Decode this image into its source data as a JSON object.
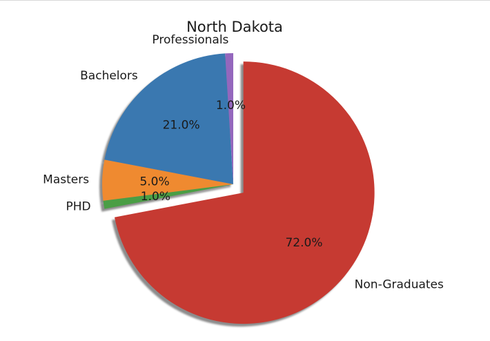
{
  "chart_data": {
    "type": "pie",
    "title": "North Dakota",
    "start_angle_deg": 90,
    "direction": "counterclockwise",
    "shadow": true,
    "legend": "none",
    "slices": [
      {
        "label": "Professionals",
        "value": 1.0,
        "pct_label": "1.0%",
        "color": "#9467bd",
        "exploded": false
      },
      {
        "label": "Bachelors",
        "value": 21.0,
        "pct_label": "21.0%",
        "color": "#3a78b0",
        "exploded": false
      },
      {
        "label": "Masters",
        "value": 5.0,
        "pct_label": "5.0%",
        "color": "#ef8a30",
        "exploded": false
      },
      {
        "label": "PHD",
        "value": 1.0,
        "pct_label": "1.0%",
        "color": "#4a9e45",
        "exploded": false
      },
      {
        "label": "Non-Graduates",
        "value": 72.0,
        "pct_label": "72.0%",
        "color": "#c63a32",
        "exploded": true
      }
    ]
  }
}
